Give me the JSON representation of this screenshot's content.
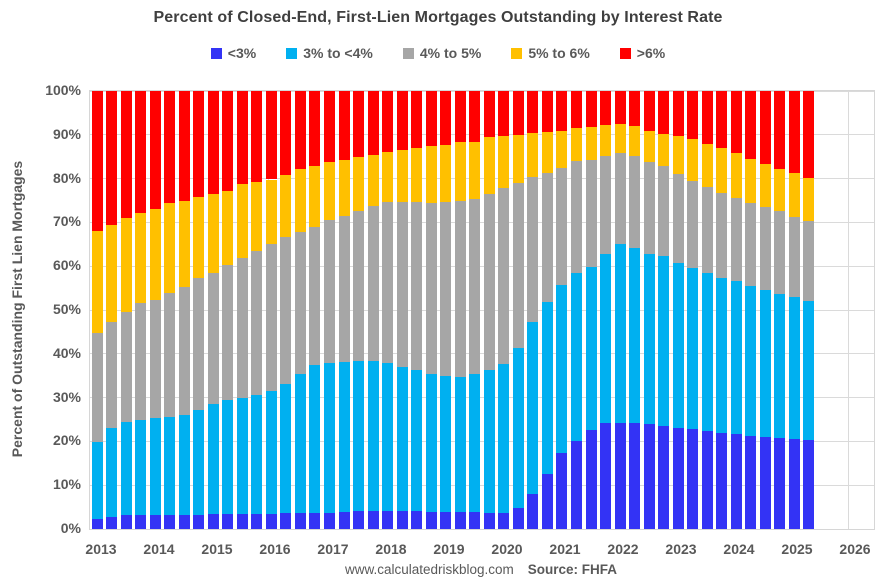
{
  "chart_data": {
    "type": "bar",
    "stacked": true,
    "title": "Percent of Closed-End, First-Lien Mortgages Outstanding by Interest Rate",
    "ylabel": "Percent of Outstanding First Lien Mortgages",
    "ylim": [
      0,
      100
    ],
    "ytick_labels": [
      "0%",
      "10%",
      "20%",
      "30%",
      "40%",
      "50%",
      "60%",
      "70%",
      "80%",
      "90%",
      "100%"
    ],
    "x_year_labels": [
      "2013",
      "2014",
      "2015",
      "2016",
      "2017",
      "2018",
      "2019",
      "2020",
      "2021",
      "2022",
      "2023",
      "2024",
      "2025",
      "2026"
    ],
    "grid": true,
    "legend_position": "top",
    "quarters": [
      "2013Q1",
      "2013Q2",
      "2013Q3",
      "2013Q4",
      "2014Q1",
      "2014Q2",
      "2014Q3",
      "2014Q4",
      "2015Q1",
      "2015Q2",
      "2015Q3",
      "2015Q4",
      "2016Q1",
      "2016Q2",
      "2016Q3",
      "2016Q4",
      "2017Q1",
      "2017Q2",
      "2017Q3",
      "2017Q4",
      "2018Q1",
      "2018Q2",
      "2018Q3",
      "2018Q4",
      "2019Q1",
      "2019Q2",
      "2019Q3",
      "2019Q4",
      "2020Q1",
      "2020Q2",
      "2020Q3",
      "2020Q4",
      "2021Q1",
      "2021Q2",
      "2021Q3",
      "2021Q4",
      "2022Q1",
      "2022Q2",
      "2022Q3",
      "2022Q4",
      "2023Q1",
      "2023Q2",
      "2023Q3",
      "2023Q4",
      "2024Q1",
      "2024Q2",
      "2024Q3",
      "2024Q4",
      "2025Q1",
      "2025Q2"
    ],
    "series": [
      {
        "name": "<3%",
        "color": "#3333F5",
        "values": [
          2.3,
          2.7,
          3.1,
          3.1,
          3.2,
          3.2,
          3.3,
          3.3,
          3.4,
          3.4,
          3.5,
          3.5,
          3.5,
          3.6,
          3.6,
          3.7,
          3.7,
          3.9,
          4.0,
          4.1,
          4.2,
          4.1,
          4.0,
          3.9,
          3.8,
          3.8,
          3.8,
          3.7,
          3.6,
          4.7,
          8.0,
          12.6,
          17.4,
          20.0,
          22.5,
          24.1,
          24.3,
          24.2,
          23.9,
          23.5,
          23.1,
          22.8,
          22.4,
          22.0,
          21.6,
          21.2,
          20.9,
          20.7,
          20.5,
          20.3
        ]
      },
      {
        "name": "3% to <4%",
        "color": "#00B0F0",
        "values": [
          17.6,
          20.4,
          21.3,
          21.8,
          22.1,
          22.4,
          22.7,
          23.9,
          25.1,
          26.1,
          26.5,
          27.1,
          27.9,
          29.4,
          31.7,
          33.7,
          34.3,
          34.3,
          34.4,
          34.3,
          33.8,
          33.0,
          32.3,
          31.6,
          31.1,
          31.0,
          31.5,
          32.6,
          34.0,
          36.7,
          39.3,
          39.2,
          38.3,
          38.5,
          37.4,
          38.8,
          40.7,
          40.0,
          39.0,
          38.8,
          37.6,
          36.9,
          36.1,
          35.4,
          35.0,
          34.3,
          33.7,
          33.0,
          32.4,
          31.8
        ]
      },
      {
        "name": "4% to 5%",
        "color": "#A6A6A6",
        "values": [
          24.8,
          24.1,
          25.1,
          26.6,
          27.0,
          28.2,
          29.3,
          30.0,
          30.0,
          30.8,
          31.8,
          32.9,
          33.6,
          33.7,
          32.6,
          31.6,
          32.5,
          33.3,
          34.2,
          35.4,
          36.6,
          37.6,
          38.3,
          38.9,
          39.8,
          40.1,
          40.0,
          40.3,
          40.2,
          37.5,
          33.1,
          29.4,
          26.8,
          25.5,
          24.3,
          22.3,
          20.9,
          21.0,
          21.0,
          20.6,
          20.4,
          19.8,
          19.6,
          19.4,
          19.0,
          19.0,
          19.0,
          18.9,
          18.4,
          18.2
        ]
      },
      {
        "name": "5% to 6%",
        "color": "#FFC000",
        "values": [
          23.4,
          22.2,
          21.4,
          20.7,
          20.7,
          20.6,
          19.6,
          18.5,
          18.1,
          16.9,
          17.0,
          15.8,
          14.8,
          14.1,
          14.2,
          13.9,
          13.2,
          12.7,
          12.4,
          11.6,
          11.5,
          11.8,
          12.5,
          13.0,
          13.0,
          13.4,
          13.1,
          13.0,
          12.0,
          11.1,
          10.1,
          9.5,
          8.4,
          7.5,
          7.5,
          7.0,
          6.5,
          6.7,
          7.0,
          7.4,
          8.6,
          9.5,
          9.9,
          10.1,
          10.2,
          10.0,
          9.8,
          9.7,
          9.9,
          9.9
        ]
      },
      {
        "name": ">6%",
        "color": "#FF0000",
        "values": [
          31.9,
          30.6,
          29.1,
          27.8,
          27.0,
          25.6,
          25.1,
          24.3,
          23.4,
          22.8,
          21.2,
          20.7,
          20.2,
          19.2,
          17.9,
          17.1,
          16.3,
          15.8,
          15.0,
          14.6,
          13.9,
          13.5,
          12.9,
          12.6,
          12.3,
          11.7,
          11.6,
          10.4,
          10.2,
          10.0,
          9.5,
          9.3,
          9.1,
          8.5,
          8.3,
          7.8,
          7.6,
          8.1,
          9.1,
          9.7,
          10.3,
          11.0,
          12.0,
          13.1,
          14.2,
          15.5,
          16.6,
          17.7,
          18.8,
          19.8
        ]
      }
    ],
    "footer": {
      "site": "www.calculatedriskblog.com",
      "source": "Source: FHFA"
    }
  }
}
